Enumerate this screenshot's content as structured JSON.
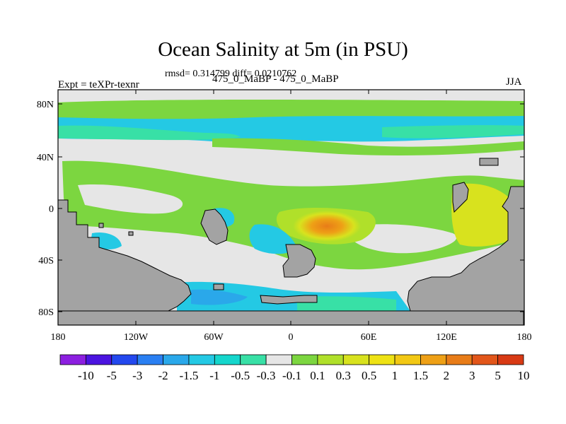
{
  "title": "Ocean Salinity at 5m (in PSU)",
  "stats": "rmsd= 0.314799 diff= 0.0210762",
  "left_label": "Expt = teXPr-texnr",
  "center_label": "475_0_MaBP - 475_0_MaBP",
  "right_label": "JJA",
  "y_ticks": [
    "80N",
    "40N",
    "0",
    "40S",
    "80S"
  ],
  "x_ticks": [
    "180",
    "120W",
    "60W",
    "0",
    "60E",
    "120E",
    "180"
  ],
  "colorbar": {
    "colors": [
      "#8c1fe0",
      "#4b14e0",
      "#2348ee",
      "#2a7ff2",
      "#2aa8ea",
      "#24c9e4",
      "#15d6cc",
      "#38e0a6",
      "#e6e6e6",
      "#7cd640",
      "#b0e02a",
      "#d8e21e",
      "#eee214",
      "#f2c814",
      "#eea016",
      "#e87c18",
      "#e2561a",
      "#d83a14"
    ],
    "labels": [
      "-10",
      "-5",
      "-3",
      "-2",
      "-1.5",
      "-1",
      "-0.5",
      "-0.3",
      "-0.1",
      "0.1",
      "0.3",
      "0.5",
      "1",
      "1.5",
      "2",
      "3",
      "5",
      "10"
    ]
  },
  "colors": {
    "land": "#a3a3a3",
    "neutral": "#e6e6e6",
    "green": "#7cd640",
    "cyan": "#24c9e4",
    "teal": "#38e0a6",
    "blue": "#2aa8ea",
    "yellow": "#d8e21e",
    "orange": "#eea016",
    "red": "#e87c18"
  }
}
